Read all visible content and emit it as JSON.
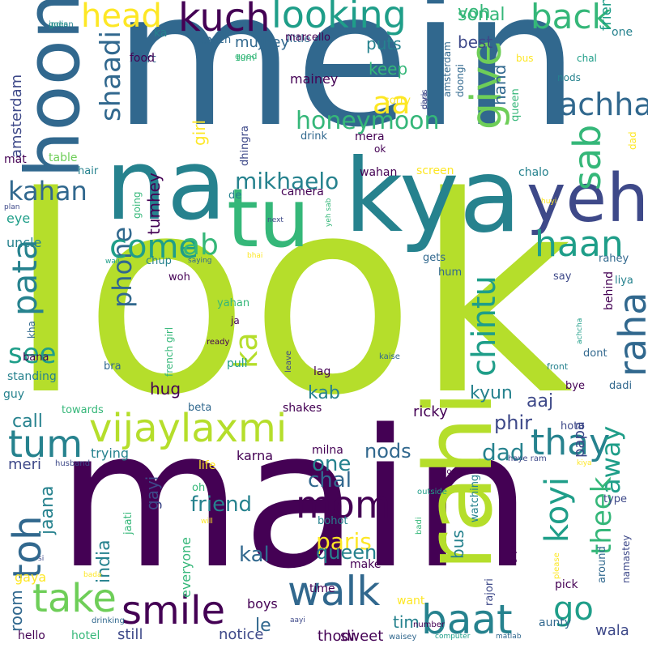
{
  "palette": {
    "yellow_green": "#b5de2b",
    "light_green": "#6ece58",
    "green": "#35b779",
    "teal": "#1f9e89",
    "cyan_blue": "#26828e",
    "steel_blue": "#31688e",
    "indigo": "#3e4989",
    "dark_purple": "#482878",
    "deep_purple": "#440154",
    "yellow": "#fde725"
  },
  "words": [
    "look",
    "mein",
    "main",
    "na",
    "kya",
    "tu",
    "rahi",
    "yeh",
    "hoon",
    "vijaylaxmi",
    "looking",
    "kuch",
    "baat",
    "walk",
    "smile",
    "toh",
    "take",
    "mom",
    "thay",
    "come",
    "pata",
    "koyi",
    "theek",
    "tum",
    "give",
    "sab",
    "haan",
    "back",
    "chintu",
    "raha",
    "phone",
    "see",
    "kahan",
    "shaadi",
    "go",
    "away",
    "ab",
    "ka",
    "aa",
    "head",
    "honeymoon",
    "mikhaelo",
    "voh",
    "achha",
    "sonal",
    "start",
    "lee",
    "little",
    "turn",
    "goes",
    "puts",
    "keep",
    "hand",
    "best",
    "mujhey",
    "mainey",
    "amsterdam",
    "paris",
    "queen",
    "friend",
    "bus",
    "chal",
    "one",
    "nods",
    "dad",
    "kal",
    "india",
    "jaana",
    "phir",
    "aaj",
    "kyun",
    "kab",
    "hug",
    "gayi",
    "call",
    "meri",
    "ricky",
    "tim",
    "walk",
    "le",
    "room",
    "boys",
    "still",
    "notice",
    "aunty",
    "wala",
    "thodi",
    "sweet",
    "want",
    "time",
    "make",
    "bohot",
    "milna",
    "karna",
    "trying",
    "everyone",
    "gaya",
    "jaati",
    "watching",
    "rajori",
    "papa",
    "type",
    "pick",
    "around",
    "please",
    "namastey",
    "hota",
    "haye ram",
    "kiya",
    "bye",
    "dadi",
    "front",
    "achcha",
    "dont",
    "behind",
    "liya",
    "rahey",
    "say",
    "chup",
    "woh",
    "yahan",
    "ja",
    "ready",
    "leave",
    "pull",
    "lag",
    "kaise",
    "shakes",
    "beta",
    "towards",
    "guy",
    "standing",
    "bana",
    "kha",
    "bra",
    "uncle",
    "eye",
    "de",
    "camera",
    "tumhey",
    "girl",
    "dhingra",
    "drink",
    "mera",
    "ok",
    "wahan",
    "screen",
    "chalo",
    "food",
    "french",
    "marcello",
    "good",
    "indian",
    "bag",
    "yes",
    "face",
    "tch",
    "dekh",
    "aisey",
    "sorry",
    "doongi",
    "diya",
    "crying",
    "people",
    "london",
    "jao",
    "ranis",
    "tujhey",
    "table",
    "hair",
    "mat",
    "plan",
    "wali",
    "saying",
    "bhai",
    "next",
    "yeh sab",
    "huyi",
    "computer",
    "matlab",
    "hello",
    "hotel",
    "drinking",
    "aayi",
    "number",
    "waisey",
    "husband",
    "life",
    "oh",
    "will",
    "si",
    "bada",
    "outside",
    "doesn",
    "badi",
    "gayee",
    "going",
    "french girl",
    "gets",
    "hum"
  ]
}
